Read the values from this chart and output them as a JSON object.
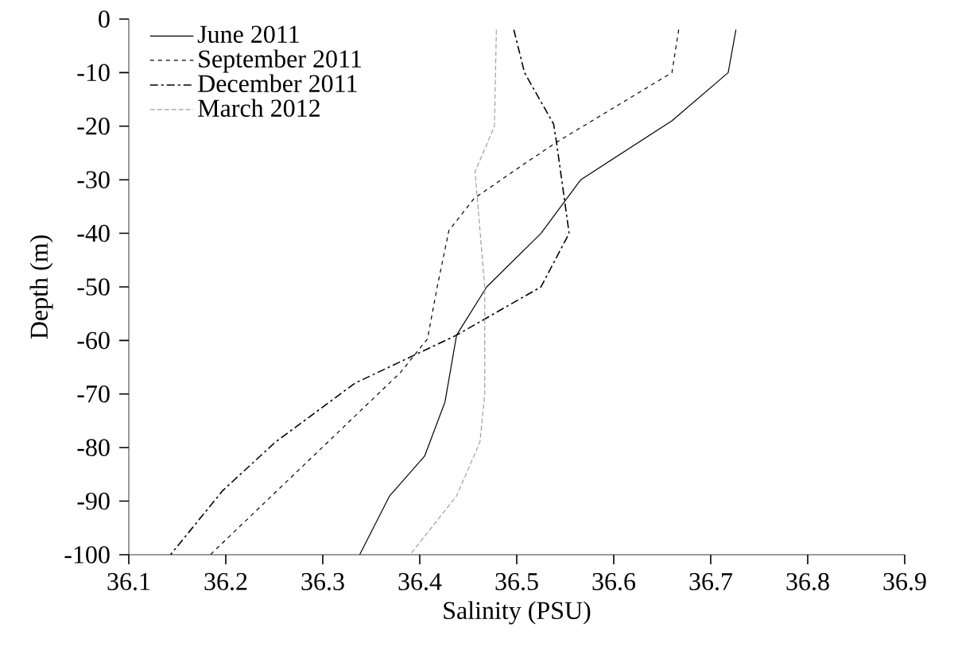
{
  "chart_data": {
    "type": "line",
    "xlabel": "Salinity (PSU)",
    "ylabel": "Depth (m)",
    "xlim": [
      36.1,
      36.9
    ],
    "xticks": [
      36.1,
      36.2,
      36.3,
      36.4,
      36.5,
      36.6,
      36.7,
      36.8,
      36.9
    ],
    "ylim": [
      -100,
      0
    ],
    "yticks": [
      -100,
      -90,
      -80,
      -70,
      -60,
      -50,
      -40,
      -30,
      -20,
      -10,
      0
    ],
    "grid": false,
    "legend": "top left",
    "marker": "none",
    "series": [
      {
        "name": "June 2011",
        "color": "#000000",
        "line_style": "solid",
        "x": [
          36.726,
          36.718,
          36.66,
          36.566,
          36.525,
          36.469,
          36.438,
          36.426,
          36.405,
          36.369,
          36.338
        ],
        "values": [
          -2,
          -10,
          -19,
          -30,
          -40,
          -50,
          -59,
          -71.5,
          -81.6,
          -89,
          -100
        ]
      },
      {
        "name": "September 2011",
        "color": "#000000",
        "line_style": "dotted",
        "x": [
          36.667,
          36.66,
          36.541,
          36.508,
          36.456,
          36.43,
          36.418,
          36.408,
          36.38,
          36.184
        ],
        "values": [
          -2,
          -10,
          -23,
          -27,
          -33.5,
          -39.5,
          -50,
          -59.7,
          -66,
          -100
        ]
      },
      {
        "name": "December 2011",
        "color": "#000000",
        "line_style": "dashdot",
        "x": [
          36.497,
          36.508,
          36.538,
          36.541,
          36.554,
          36.525,
          36.438,
          36.333,
          36.251,
          36.197,
          36.143
        ],
        "values": [
          -2,
          -10,
          -19.6,
          -23,
          -40,
          -50,
          -59,
          -68,
          -79,
          -88,
          -100
        ]
      },
      {
        "name": "March 2012",
        "color": "#a0a0a0",
        "line_style": "dashed",
        "x": [
          36.479,
          36.477,
          36.457,
          36.467,
          36.467,
          36.462,
          36.438,
          36.39
        ],
        "values": [
          -2,
          -20,
          -28.5,
          -50,
          -70,
          -79,
          -89,
          -100
        ]
      }
    ]
  }
}
